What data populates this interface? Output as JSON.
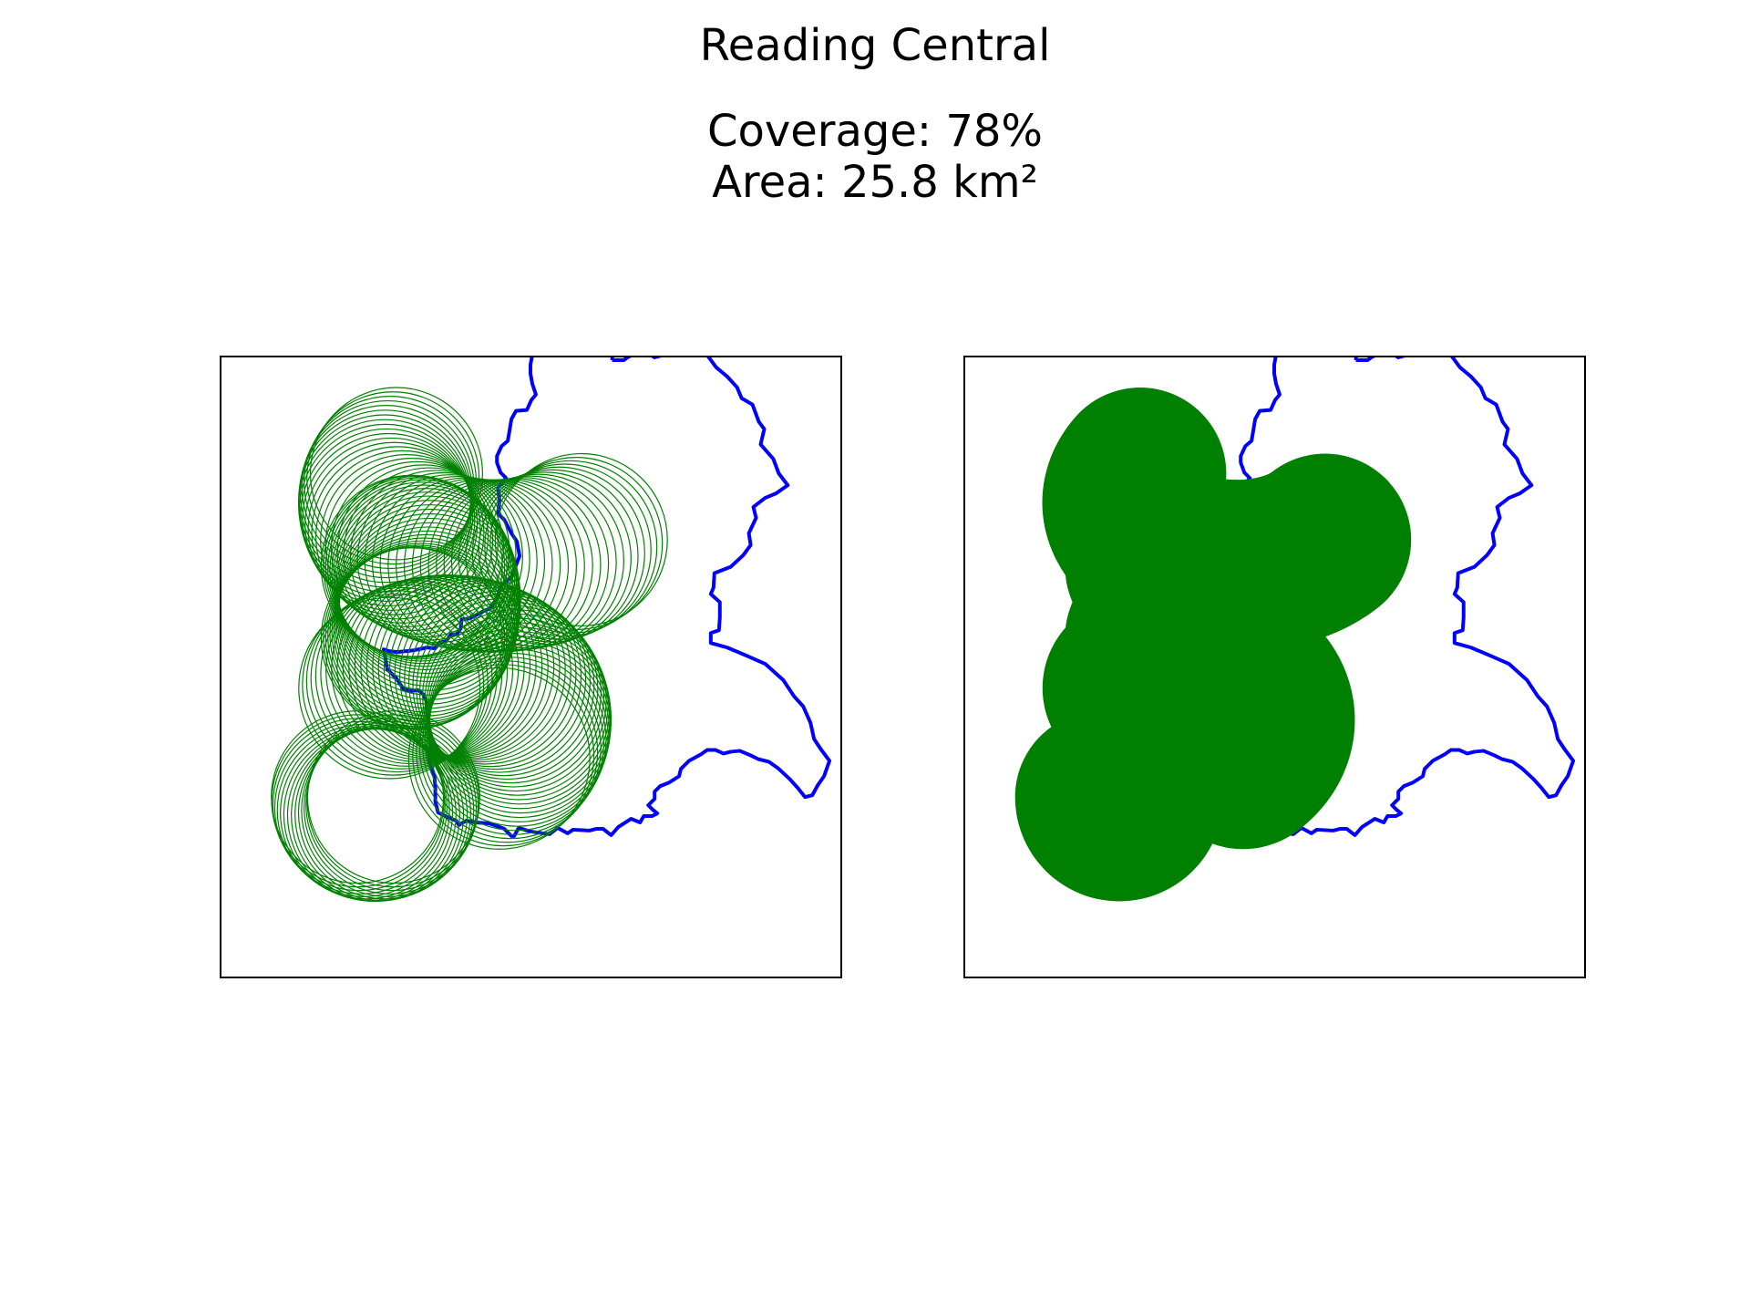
{
  "figure": {
    "title": "Reading Central",
    "coverage_line": "Coverage: 78%",
    "area_line": "Area: 25.8 km²"
  },
  "colors": {
    "boundary": "#0000ff",
    "coverage": "#008000",
    "frame": "#000000",
    "background": "#ffffff"
  },
  "panels": [
    {
      "name": "outline-panel",
      "coverage_style": "ring-outlines"
    },
    {
      "name": "filled-panel",
      "coverage_style": "filled"
    }
  ]
}
